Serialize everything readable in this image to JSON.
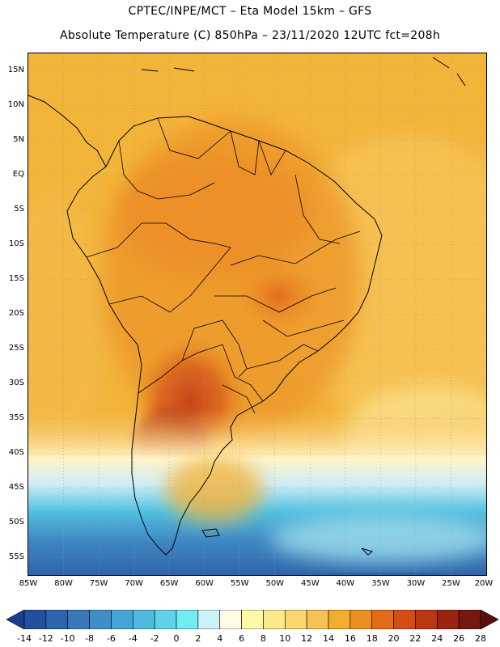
{
  "header": {
    "line1": "CPTEC/INPE/MCT –  Eta Model 15km – GFS",
    "line2": "Absolute Temperature (C) 850hPa – 23/11/2020 12UTC fct=208h"
  },
  "map": {
    "lon_range": [
      -85,
      -20
    ],
    "lat_range": [
      -57.5,
      17.5
    ],
    "latitude_ticks": [
      {
        "value": 15,
        "label": "15N"
      },
      {
        "value": 10,
        "label": "10N"
      },
      {
        "value": 5,
        "label": "5N"
      },
      {
        "value": 0,
        "label": "EQ"
      },
      {
        "value": -5,
        "label": "5S"
      },
      {
        "value": -10,
        "label": "10S"
      },
      {
        "value": -15,
        "label": "15S"
      },
      {
        "value": -20,
        "label": "20S"
      },
      {
        "value": -25,
        "label": "25S"
      },
      {
        "value": -30,
        "label": "30S"
      },
      {
        "value": -35,
        "label": "35S"
      },
      {
        "value": -40,
        "label": "40S"
      },
      {
        "value": -45,
        "label": "45S"
      },
      {
        "value": -50,
        "label": "50S"
      },
      {
        "value": -55,
        "label": "55S"
      }
    ],
    "longitude_ticks": [
      {
        "value": -85,
        "label": "85W"
      },
      {
        "value": -80,
        "label": "80W"
      },
      {
        "value": -75,
        "label": "75W"
      },
      {
        "value": -70,
        "label": "70W"
      },
      {
        "value": -65,
        "label": "65W"
      },
      {
        "value": -60,
        "label": "60W"
      },
      {
        "value": -55,
        "label": "55W"
      },
      {
        "value": -50,
        "label": "50W"
      },
      {
        "value": -45,
        "label": "45W"
      },
      {
        "value": -40,
        "label": "40W"
      },
      {
        "value": -35,
        "label": "35W"
      },
      {
        "value": -30,
        "label": "30W"
      },
      {
        "value": -25,
        "label": "25W"
      },
      {
        "value": -20,
        "label": "20W"
      }
    ],
    "colors": {
      "ocean_warm": "#f3b43a",
      "coast": "#000000",
      "grid": "#9a9a9a"
    }
  },
  "colorbar": {
    "labels": [
      "-14",
      "-12",
      "-10",
      "-8",
      "-6",
      "-4",
      "-2",
      "0",
      "2",
      "4",
      "6",
      "8",
      "10",
      "12",
      "14",
      "16",
      "18",
      "20",
      "22",
      "24",
      "26",
      "28"
    ],
    "colors": [
      "#1a3c8c",
      "#23509e",
      "#2c64ae",
      "#3a78bc",
      "#3e8ec8",
      "#46a4d4",
      "#4fbadf",
      "#5fd2e8",
      "#70ecf2",
      "#caf2f8",
      "#fffbe3",
      "#fff9a6",
      "#fbe98a",
      "#fad66e",
      "#f7c255",
      "#f3ad2e",
      "#ec8e22",
      "#e46a18",
      "#d44e14",
      "#bc3612",
      "#9a2410",
      "#741810",
      "#5a0c10"
    ]
  }
}
